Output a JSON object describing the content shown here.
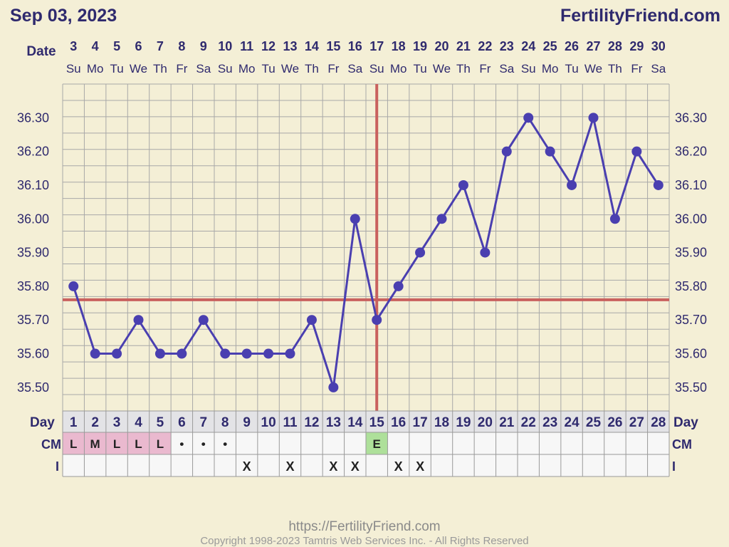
{
  "header": {
    "date": "Sep 03, 2023",
    "site": "FertilityFriend.com"
  },
  "footer": {
    "url": "https://FertilityFriend.com",
    "copyright": "Copyright 1998-2023 Tamtris Web Services Inc. - All Rights Reserved"
  },
  "labels": {
    "date": "Date",
    "day": "Day",
    "cm": "CM",
    "intercourse": "I"
  },
  "colors": {
    "background": "#f4efd6",
    "grid": "#a8a8a8",
    "line": "#4a3fb0",
    "coverline": "#c9615e",
    "text": "#2f2a6e",
    "cm_pink": "#eab9cf",
    "cm_green": "#aee09a"
  },
  "chart_data": {
    "type": "line",
    "x": [
      "3",
      "4",
      "5",
      "6",
      "7",
      "8",
      "9",
      "10",
      "11",
      "12",
      "13",
      "14",
      "15",
      "16",
      "17",
      "18",
      "19",
      "20",
      "21",
      "22",
      "23",
      "24",
      "25",
      "26",
      "27",
      "28",
      "29",
      "30"
    ],
    "weekdays": [
      "Su",
      "Mo",
      "Tu",
      "We",
      "Th",
      "Fr",
      "Sa",
      "Su",
      "Mo",
      "Tu",
      "We",
      "Th",
      "Fr",
      "Sa",
      "Su",
      "Mo",
      "Tu",
      "We",
      "Th",
      "Fr",
      "Sa",
      "Su",
      "Mo",
      "Tu",
      "We",
      "Th",
      "Fr",
      "Sa"
    ],
    "cycle_days": [
      "1",
      "2",
      "3",
      "4",
      "5",
      "6",
      "7",
      "8",
      "9",
      "10",
      "11",
      "12",
      "13",
      "14",
      "15",
      "16",
      "17",
      "18",
      "19",
      "20",
      "21",
      "22",
      "23",
      "24",
      "25",
      "26",
      "27",
      "28"
    ],
    "y_ticks": [
      "36.30",
      "36.20",
      "36.10",
      "36.00",
      "35.90",
      "35.80",
      "35.70",
      "35.60",
      "35.50"
    ],
    "ylim": [
      35.43,
      36.4
    ],
    "series": [
      {
        "values": [
          35.8,
          35.6,
          35.6,
          35.7,
          35.6,
          35.6,
          35.7,
          35.6,
          35.6,
          35.6,
          35.6,
          35.7,
          35.5,
          36.0,
          35.7,
          35.8,
          35.9,
          36.0,
          36.1,
          35.9,
          36.2,
          36.3,
          36.2,
          36.1,
          36.3,
          36.0,
          36.2,
          36.1
        ]
      }
    ],
    "coverline": 35.76,
    "ovulation_cycle_day": 15,
    "cervical_mucus": [
      "L",
      "M",
      "L",
      "L",
      "L",
      "•",
      "•",
      "•",
      "",
      "",
      "",
      "",
      "",
      "",
      "E",
      "",
      "",
      "",
      "",
      "",
      "",
      "",
      "",
      "",
      "",
      "",
      "",
      ""
    ],
    "intercourse": [
      "",
      "",
      "",
      "",
      "",
      "",
      "",
      "",
      "X",
      "",
      "X",
      "",
      "X",
      "X",
      "",
      "X",
      "X",
      "",
      "",
      "",
      "",
      "",
      "",
      "",
      "",
      "",
      "",
      ""
    ],
    "grid": true
  }
}
